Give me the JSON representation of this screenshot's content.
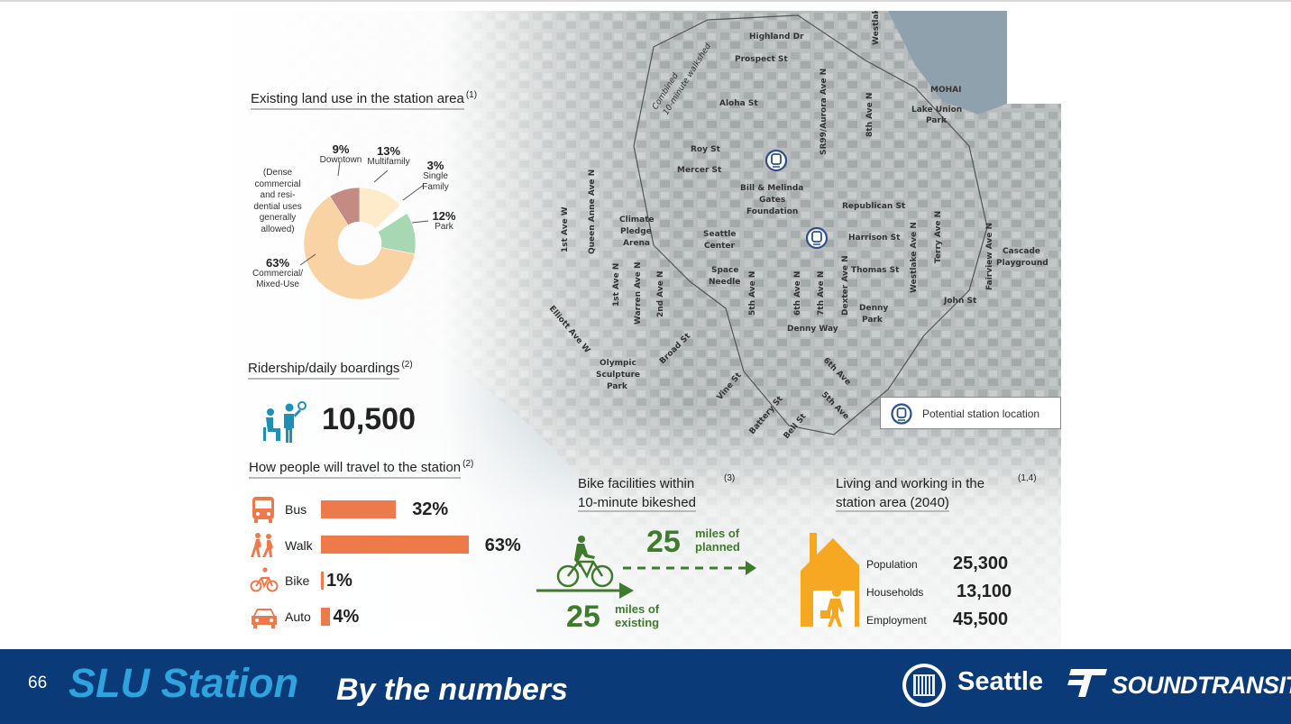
{
  "slide": {
    "page_number": "66",
    "title": "SLU Station",
    "subtitle": "By the numbers"
  },
  "logos": {
    "seattle": "Seattle",
    "sound_transit": "SOUNDTRANSIT"
  },
  "land_use": {
    "title": "Existing land use in the station area",
    "note": "(1)",
    "dense_note": [
      "(Dense",
      "commercial",
      "and resi-",
      "dential uses",
      "generally",
      "allowed)"
    ],
    "segments": [
      {
        "pct": "9%",
        "label": "Downtown",
        "value": 9,
        "color": "#c48b82"
      },
      {
        "pct": "13%",
        "label": "Multifamily",
        "value": 13,
        "color": "#fdebc9"
      },
      {
        "pct": "3%",
        "label": "Single Family",
        "value": 3,
        "color": "#ffffff"
      },
      {
        "pct": "12%",
        "label": "Park",
        "value": 12,
        "color": "#a8d7b3"
      },
      {
        "pct": "63%",
        "label": "Commercial/ Mixed-Use",
        "value": 63,
        "color": "#f9d3a3"
      }
    ]
  },
  "ridership": {
    "title": "Ridership/daily boardings",
    "note": "(2)",
    "value": "10,500"
  },
  "travel": {
    "title": "How people will travel to the station",
    "note": "(2)",
    "modes": [
      {
        "label": "Bus",
        "pct": "32%",
        "value": 32
      },
      {
        "label": "Walk",
        "pct": "63%",
        "value": 63
      },
      {
        "label": "Bike",
        "pct": "1%",
        "value": 1
      },
      {
        "label": "Auto",
        "pct": "4%",
        "value": 4
      }
    ]
  },
  "bike": {
    "title_line1": "Bike facilities within",
    "title_line2": "10-minute bikeshed",
    "note": "(3)",
    "planned_num": "25",
    "planned_line1": "miles of",
    "planned_line2": "planned",
    "existing_num": "25",
    "existing_line1": "miles of",
    "existing_line2": "existing"
  },
  "living": {
    "title_line1": "Living and working in the",
    "title_line2": "station area (2040)",
    "note": "(1,4)",
    "stats": [
      {
        "label": "Population",
        "value": "25,300"
      },
      {
        "label": "Households",
        "value": "13,100"
      },
      {
        "label": "Employment",
        "value": "45,500"
      }
    ]
  },
  "legend": {
    "label": "Potential station location",
    "icon": "train-station-icon"
  },
  "map": {
    "walkshed": "Combined 10-minute walkshed",
    "labels": [
      "Highland Dr",
      "Prospect St",
      "Westlake",
      "SR99/Aurora Ave N",
      "8th Ave N",
      "MOHAI",
      "Lake Union Park",
      "Aloha St",
      "Roy St",
      "Mercer St",
      "Bill & Melinda Gates Foundation",
      "Republican St",
      "Harrison St",
      "Thomas St",
      "Climate Pledge Arena",
      "Seattle Center",
      "Space Needle",
      "1st Ave W",
      "Queen Anne Ave N",
      "1st Ave N",
      "Warren Ave N",
      "2nd Ave N",
      "5th Ave N",
      "6th Ave N",
      "7th Ave N",
      "Dexter Ave N",
      "Westlake Ave N",
      "Terry Ave N",
      "Fairview Ave N",
      "Cascade Playground",
      "John St",
      "Denny Park",
      "Denny Way",
      "Elliott Ave W",
      "Olympic Sculpture Park",
      "Broad St",
      "Vine St",
      "Battery St",
      "Bell St",
      "6th Ave",
      "5th Ave"
    ]
  },
  "colors": {
    "footer_bg": "#0b3a78",
    "title_blue": "#2fa3dd",
    "bar_orange": "#ee7a4c",
    "bike_green": "#3f7a2d",
    "house_orange": "#f7a823",
    "station_blue": "#2d4f8a"
  }
}
